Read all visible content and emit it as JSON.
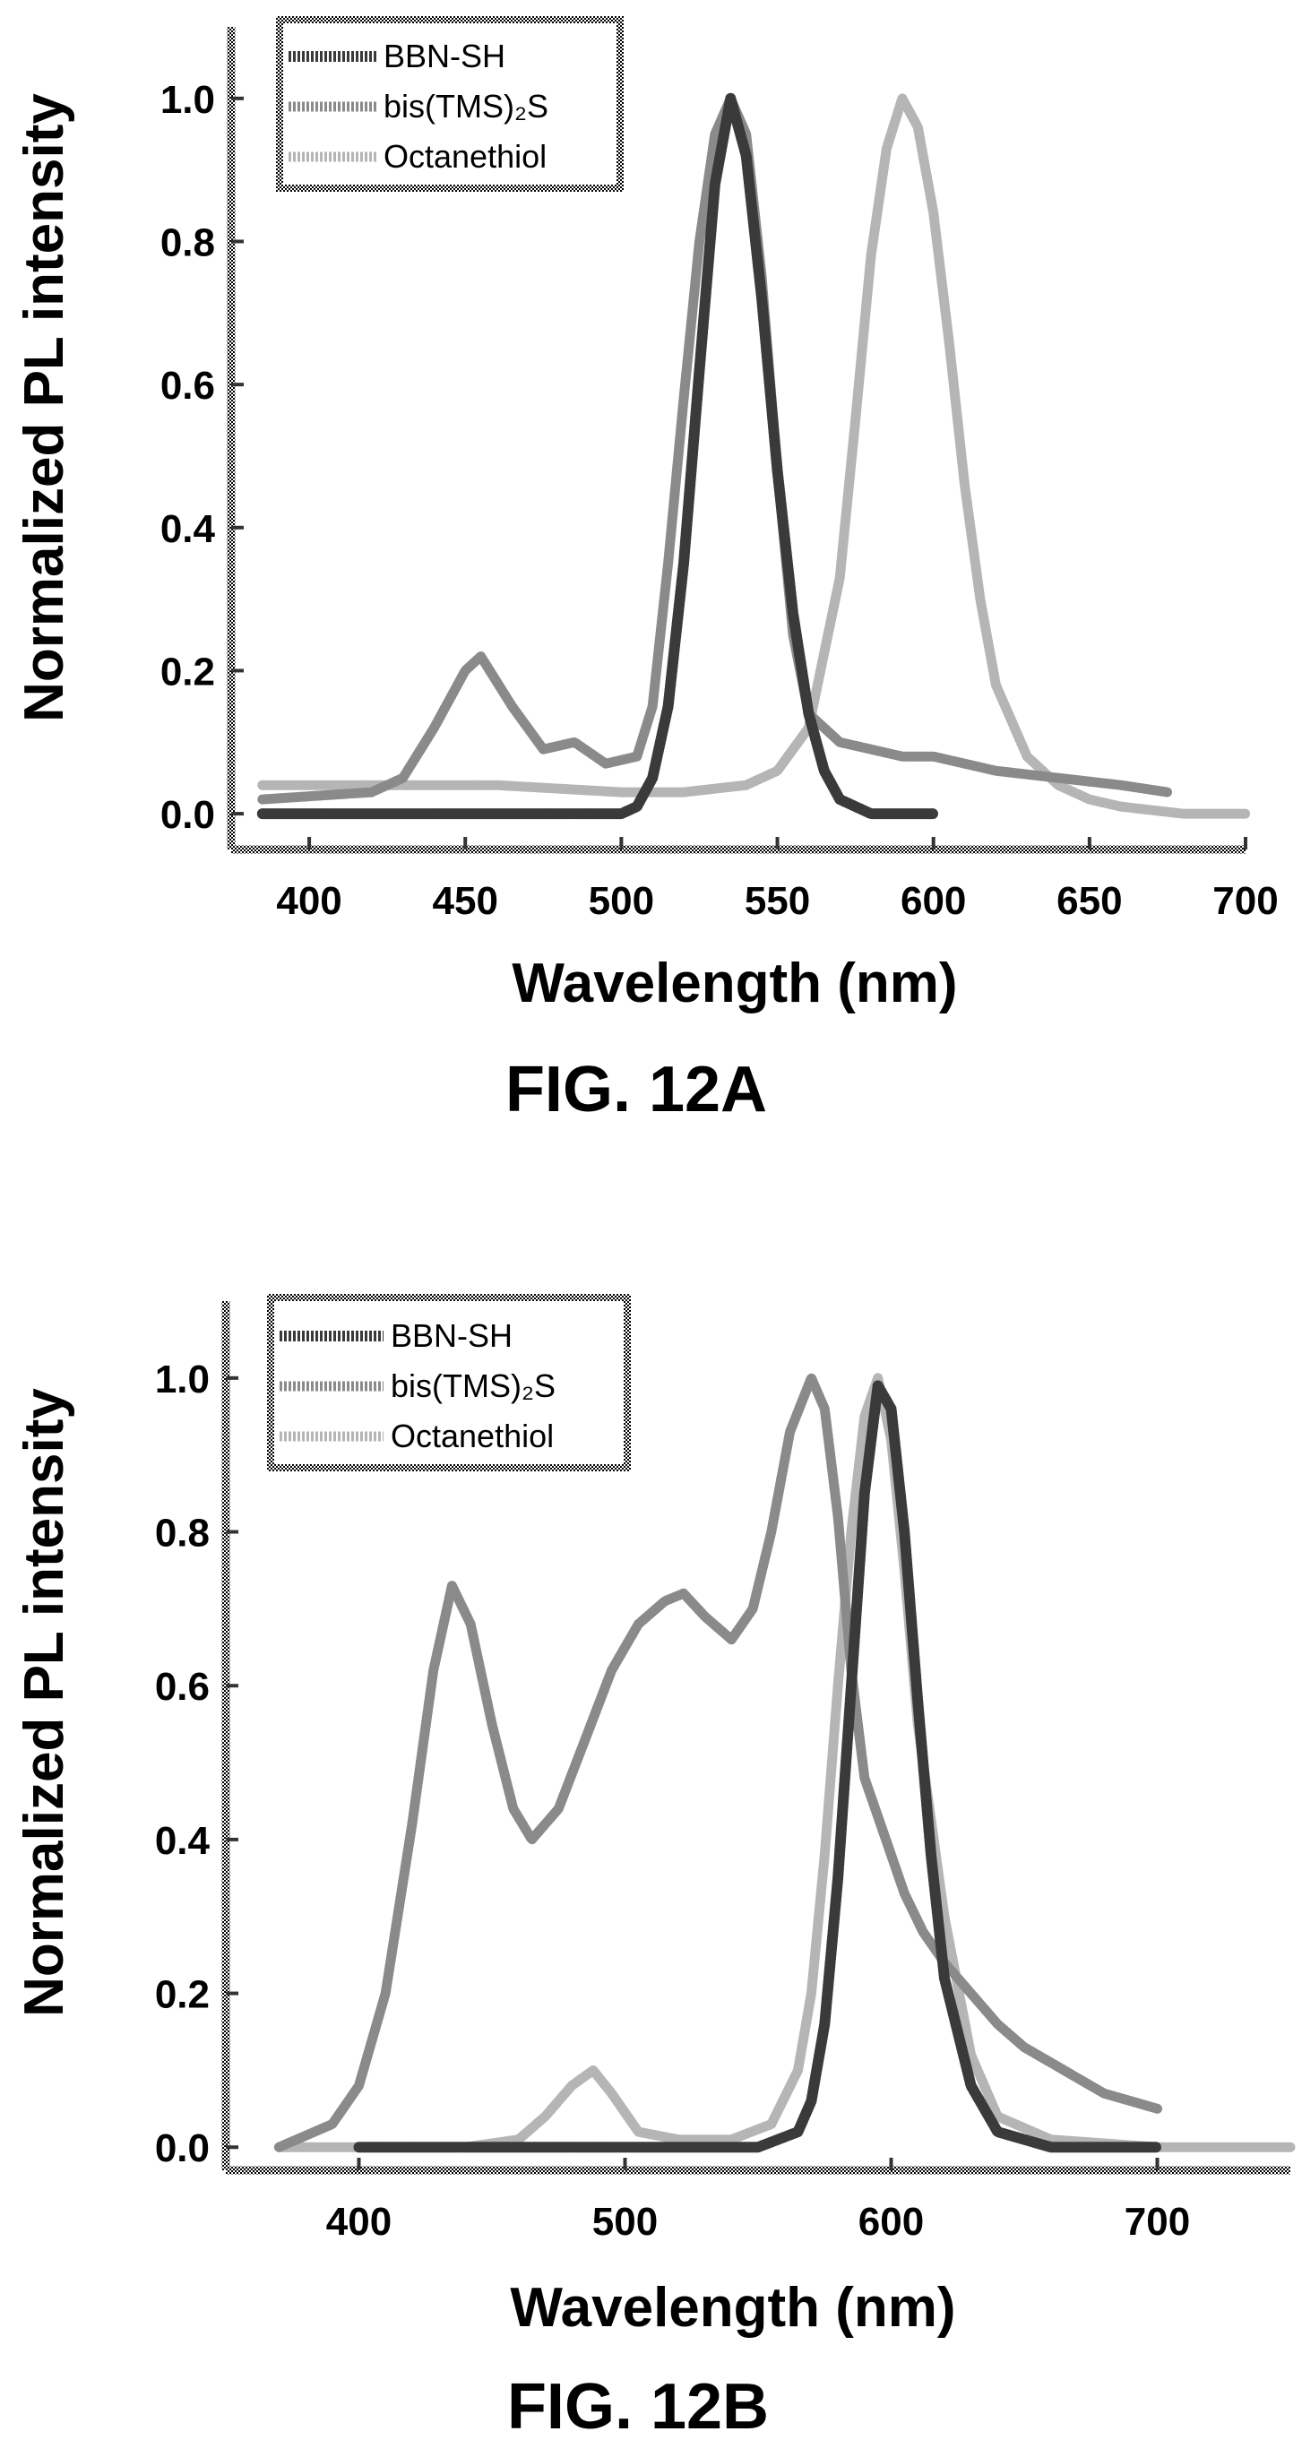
{
  "chart_data": [
    {
      "type": "line",
      "caption": "FIG. 12A",
      "xlabel": "Wavelength (nm)",
      "ylabel": "Normalized PL intensity",
      "xlim": [
        375,
        700
      ],
      "ylim": [
        -0.05,
        1.1
      ],
      "xticks": [
        "400",
        "450",
        "500",
        "550",
        "600",
        "650",
        "700"
      ],
      "xtick_values": [
        400,
        450,
        500,
        550,
        600,
        650,
        700
      ],
      "yticks": [
        "0.0",
        "0.2",
        "0.4",
        "0.6",
        "0.8",
        "1.0"
      ],
      "ytick_values": [
        0.0,
        0.2,
        0.4,
        0.6,
        0.8,
        1.0
      ],
      "legend": {
        "position": "top-left"
      },
      "series": [
        {
          "name": "BBN-SH",
          "color": "#3a3a3a",
          "x": [
            385,
            420,
            480,
            500,
            505,
            510,
            515,
            520,
            525,
            530,
            535,
            540,
            545,
            550,
            555,
            560,
            565,
            570,
            580,
            590,
            600
          ],
          "y": [
            0.0,
            0.0,
            0.0,
            0.0,
            0.01,
            0.05,
            0.15,
            0.35,
            0.62,
            0.88,
            1.0,
            0.92,
            0.72,
            0.48,
            0.28,
            0.14,
            0.06,
            0.02,
            0.0,
            0.0,
            0.0
          ]
        },
        {
          "name": "bis(TMS)₂S",
          "color": "#8a8a8a",
          "x": [
            385,
            420,
            430,
            440,
            450,
            455,
            465,
            475,
            485,
            495,
            505,
            510,
            515,
            520,
            525,
            530,
            535,
            540,
            545,
            550,
            555,
            560,
            565,
            570,
            580,
            590,
            600,
            620,
            640,
            660,
            675
          ],
          "y": [
            0.02,
            0.03,
            0.05,
            0.12,
            0.2,
            0.22,
            0.15,
            0.09,
            0.1,
            0.07,
            0.08,
            0.15,
            0.35,
            0.58,
            0.8,
            0.95,
            1.0,
            0.95,
            0.75,
            0.48,
            0.25,
            0.14,
            0.12,
            0.1,
            0.09,
            0.08,
            0.08,
            0.06,
            0.05,
            0.04,
            0.03
          ]
        },
        {
          "name": "Octanethiol",
          "color": "#b5b5b5",
          "x": [
            385,
            420,
            460,
            500,
            520,
            540,
            550,
            560,
            570,
            575,
            580,
            585,
            590,
            595,
            600,
            605,
            610,
            615,
            620,
            630,
            640,
            650,
            660,
            680,
            700
          ],
          "y": [
            0.04,
            0.04,
            0.04,
            0.03,
            0.03,
            0.04,
            0.06,
            0.12,
            0.33,
            0.55,
            0.78,
            0.93,
            1.0,
            0.96,
            0.84,
            0.66,
            0.46,
            0.3,
            0.18,
            0.08,
            0.04,
            0.02,
            0.01,
            0.0,
            0.0
          ]
        }
      ]
    },
    {
      "type": "line",
      "caption": "FIG. 12B",
      "xlabel": "Wavelength (nm)",
      "ylabel": "Normalized PL intensity",
      "xlim": [
        350,
        750
      ],
      "ylim": [
        -0.03,
        1.1
      ],
      "xticks": [
        "400",
        "500",
        "600",
        "700"
      ],
      "xtick_values": [
        400,
        500,
        600,
        700
      ],
      "yticks": [
        "0.0",
        "0.2",
        "0.4",
        "0.6",
        "0.8",
        "1.0"
      ],
      "ytick_values": [
        0.0,
        0.2,
        0.4,
        0.6,
        0.8,
        1.0
      ],
      "legend": {
        "position": "top-left"
      },
      "series": [
        {
          "name": "BBN-SH",
          "color": "#3a3a3a",
          "x": [
            400,
            500,
            550,
            565,
            570,
            575,
            580,
            585,
            590,
            595,
            600,
            605,
            610,
            615,
            620,
            630,
            640,
            660,
            700
          ],
          "y": [
            0.0,
            0.0,
            0.0,
            0.02,
            0.06,
            0.16,
            0.35,
            0.6,
            0.85,
            0.99,
            0.96,
            0.8,
            0.58,
            0.38,
            0.22,
            0.08,
            0.02,
            0.0,
            0.0
          ]
        },
        {
          "name": "bis(TMS)₂S",
          "color": "#8a8a8a",
          "x": [
            370,
            390,
            400,
            410,
            420,
            428,
            435,
            442,
            450,
            458,
            465,
            475,
            485,
            495,
            505,
            515,
            522,
            530,
            540,
            548,
            555,
            562,
            570,
            575,
            580,
            585,
            590,
            598,
            605,
            612,
            620,
            630,
            640,
            650,
            660,
            670,
            680,
            690,
            700
          ],
          "y": [
            0.0,
            0.03,
            0.08,
            0.2,
            0.42,
            0.62,
            0.73,
            0.68,
            0.55,
            0.44,
            0.4,
            0.44,
            0.53,
            0.62,
            0.68,
            0.71,
            0.72,
            0.69,
            0.66,
            0.7,
            0.8,
            0.93,
            1.0,
            0.96,
            0.82,
            0.62,
            0.48,
            0.4,
            0.33,
            0.28,
            0.24,
            0.2,
            0.16,
            0.13,
            0.11,
            0.09,
            0.07,
            0.06,
            0.05
          ]
        },
        {
          "name": "Octanethiol",
          "color": "#b5b5b5",
          "x": [
            370,
            440,
            460,
            470,
            480,
            488,
            495,
            505,
            520,
            540,
            555,
            565,
            570,
            575,
            580,
            585,
            590,
            595,
            600,
            605,
            610,
            620,
            630,
            640,
            660,
            700,
            750
          ],
          "y": [
            0.0,
            0.0,
            0.01,
            0.04,
            0.08,
            0.1,
            0.07,
            0.02,
            0.01,
            0.01,
            0.03,
            0.1,
            0.2,
            0.38,
            0.6,
            0.8,
            0.95,
            1.0,
            0.92,
            0.75,
            0.55,
            0.3,
            0.12,
            0.04,
            0.01,
            0.0,
            0.0
          ]
        }
      ]
    }
  ]
}
